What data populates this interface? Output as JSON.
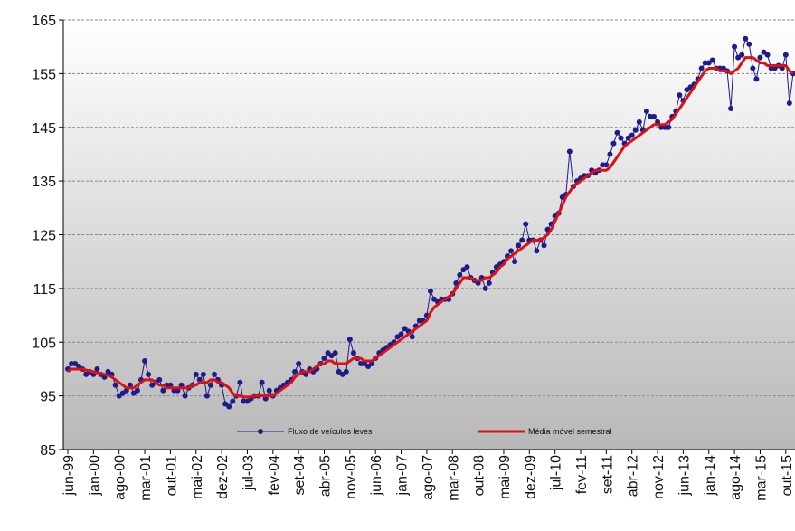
{
  "chart_data": {
    "type": "line",
    "categories": [
      "jun-99",
      null,
      null,
      null,
      null,
      null,
      null,
      "jan-00",
      null,
      null,
      null,
      null,
      null,
      null,
      "ago-00",
      null,
      null,
      null,
      null,
      null,
      null,
      "mar-01",
      null,
      null,
      null,
      null,
      null,
      null,
      "out-01",
      null,
      null,
      null,
      null,
      null,
      null,
      "mai-02",
      null,
      null,
      null,
      null,
      null,
      null,
      "dez-02",
      null,
      null,
      null,
      null,
      null,
      null,
      "jul-03",
      null,
      null,
      null,
      null,
      null,
      null,
      "fev-04",
      null,
      null,
      null,
      null,
      null,
      null,
      "set-04",
      null,
      null,
      null,
      null,
      null,
      null,
      "abr-05",
      null,
      null,
      null,
      null,
      null,
      null,
      "nov-05",
      null,
      null,
      null,
      null,
      null,
      null,
      "jun-06",
      null,
      null,
      null,
      null,
      null,
      null,
      "jan-07",
      null,
      null,
      null,
      null,
      null,
      null,
      "ago-07",
      null,
      null,
      null,
      null,
      null,
      null,
      "mar-08",
      null,
      null,
      null,
      null,
      null,
      null,
      "out-08",
      null,
      null,
      null,
      null,
      null,
      null,
      "mai-09",
      null,
      null,
      null,
      null,
      null,
      null,
      "dez-09",
      null,
      null,
      null,
      null,
      null,
      null,
      "jul-10",
      null,
      null,
      null,
      null,
      null,
      null,
      "fev-11",
      null,
      null,
      null,
      null,
      null,
      null,
      "set-11",
      null,
      null,
      null,
      null,
      null,
      null,
      "abr-12",
      null,
      null,
      null,
      null,
      null,
      null,
      "nov-12",
      null,
      null,
      null,
      null,
      null,
      null,
      "jun-13",
      null,
      null,
      null,
      null,
      null,
      null,
      "jan-14",
      null,
      null,
      null,
      null,
      null,
      null,
      "ago-14",
      null,
      null,
      null,
      null,
      null,
      null,
      "mar-15",
      null,
      null,
      null,
      null,
      null,
      null,
      "out-15",
      null,
      null
    ],
    "series": [
      {
        "name": "Fluxo de veículos leves",
        "color": "#1c1c8c",
        "markers": true,
        "values": [
          100,
          101,
          101,
          100.5,
          100,
          99,
          99.5,
          99,
          100,
          99,
          98.5,
          99.5,
          99,
          97,
          95,
          95.5,
          96,
          97,
          95.5,
          96,
          98,
          101.5,
          99,
          97,
          97.5,
          98,
          96,
          97,
          97,
          96,
          96,
          97,
          95,
          96.5,
          97,
          99,
          98,
          99,
          95,
          97,
          99,
          98,
          97,
          93.5,
          93,
          94,
          95,
          97.5,
          94,
          94,
          94.5,
          95,
          95,
          97.5,
          94.5,
          96,
          95,
          96,
          96.5,
          97,
          97.5,
          98,
          99.5,
          101,
          99.5,
          99,
          100,
          99.5,
          100,
          101,
          102,
          103,
          102.5,
          103,
          99.5,
          99,
          99.5,
          105.5,
          103,
          102,
          101,
          101,
          100.5,
          101,
          102,
          103,
          103.5,
          104,
          104.5,
          105,
          106,
          106.5,
          107.5,
          107,
          106,
          108,
          109,
          109,
          110,
          114.5,
          113,
          112.5,
          113,
          113,
          113,
          114,
          116,
          117.5,
          118.5,
          119,
          117,
          116.5,
          116,
          117,
          115,
          116,
          118,
          119,
          119.5,
          120,
          121,
          122,
          120,
          123,
          124,
          127,
          124,
          124,
          122,
          124,
          123,
          126,
          127,
          128.5,
          129,
          132,
          132.5,
          140.5,
          134,
          135,
          135.5,
          136,
          136,
          137,
          136.5,
          137,
          138,
          138,
          140,
          142,
          144,
          143,
          142,
          143,
          143.5,
          144.5,
          146,
          144.5,
          148,
          147,
          147,
          146,
          145,
          145,
          145,
          147,
          148,
          151,
          150,
          152,
          152.5,
          153,
          154,
          156,
          157,
          157,
          157.5,
          156,
          156,
          156,
          155.5,
          148.5,
          160,
          158,
          158.5,
          161.5,
          160.5,
          156,
          154,
          158,
          159,
          158.5,
          156,
          156,
          156.5,
          156,
          158.5,
          149.5,
          155
        ]
      },
      {
        "name": "Média móvel semestral",
        "color": "#e01010",
        "markers": false,
        "values": [
          99.5,
          100,
          100,
          100,
          100,
          99.8,
          99.6,
          99.5,
          99.3,
          99.2,
          99,
          98.8,
          98.5,
          98,
          97.5,
          97,
          96.5,
          96.5,
          96.5,
          97,
          97.5,
          98,
          98,
          98,
          97.5,
          97,
          97,
          96.5,
          96.5,
          96.5,
          96.5,
          96.5,
          96.5,
          96.5,
          97,
          97,
          97.5,
          97.5,
          97.5,
          98,
          98,
          97.5,
          97.5,
          97,
          96.5,
          95.5,
          95,
          95,
          94.8,
          94.8,
          94.8,
          95,
          95,
          95,
          95,
          95,
          95,
          95.5,
          96,
          96.5,
          97,
          97.5,
          98.5,
          99,
          99.5,
          99.5,
          99.5,
          100,
          100.5,
          101,
          101,
          101.5,
          101.5,
          101,
          101,
          101,
          101,
          101.5,
          102,
          102,
          102,
          101.5,
          101.5,
          101.5,
          102,
          102.5,
          103,
          103.5,
          104,
          104.5,
          105,
          105.5,
          106,
          106.5,
          107,
          107.5,
          108,
          108.5,
          109,
          110.5,
          111.5,
          112,
          112.5,
          113,
          113.5,
          114,
          115,
          116,
          117,
          117,
          117,
          116.5,
          116.5,
          116.5,
          117,
          117,
          117.5,
          118,
          119,
          119.5,
          120.5,
          121,
          121.5,
          122,
          122.5,
          123,
          123.5,
          124,
          124,
          124,
          124.5,
          125,
          126,
          127.5,
          129,
          130.5,
          132,
          133,
          134,
          134.5,
          135,
          135.5,
          136,
          136.5,
          137,
          137,
          137,
          137,
          137.5,
          138.5,
          139.5,
          140.5,
          141.5,
          142,
          142.5,
          143,
          143.5,
          144,
          144.5,
          145,
          145.5,
          145.5,
          145.5,
          145.5,
          146,
          146.5,
          147.5,
          148.5,
          149.5,
          150.5,
          151.5,
          152.5,
          153.5,
          154.5,
          155.5,
          156,
          156,
          156,
          155.5,
          155.5,
          155.5,
          155,
          155.5,
          156,
          157,
          158,
          158,
          158,
          157.5,
          157,
          157,
          156.5,
          156.5,
          156.5,
          156.5,
          156.5,
          156.5,
          155.5,
          155
        ]
      }
    ],
    "ylim": [
      85,
      165
    ],
    "yticks": [
      85,
      95,
      105,
      115,
      125,
      135,
      145,
      155,
      165
    ],
    "grid": true,
    "legend": "bottom"
  }
}
